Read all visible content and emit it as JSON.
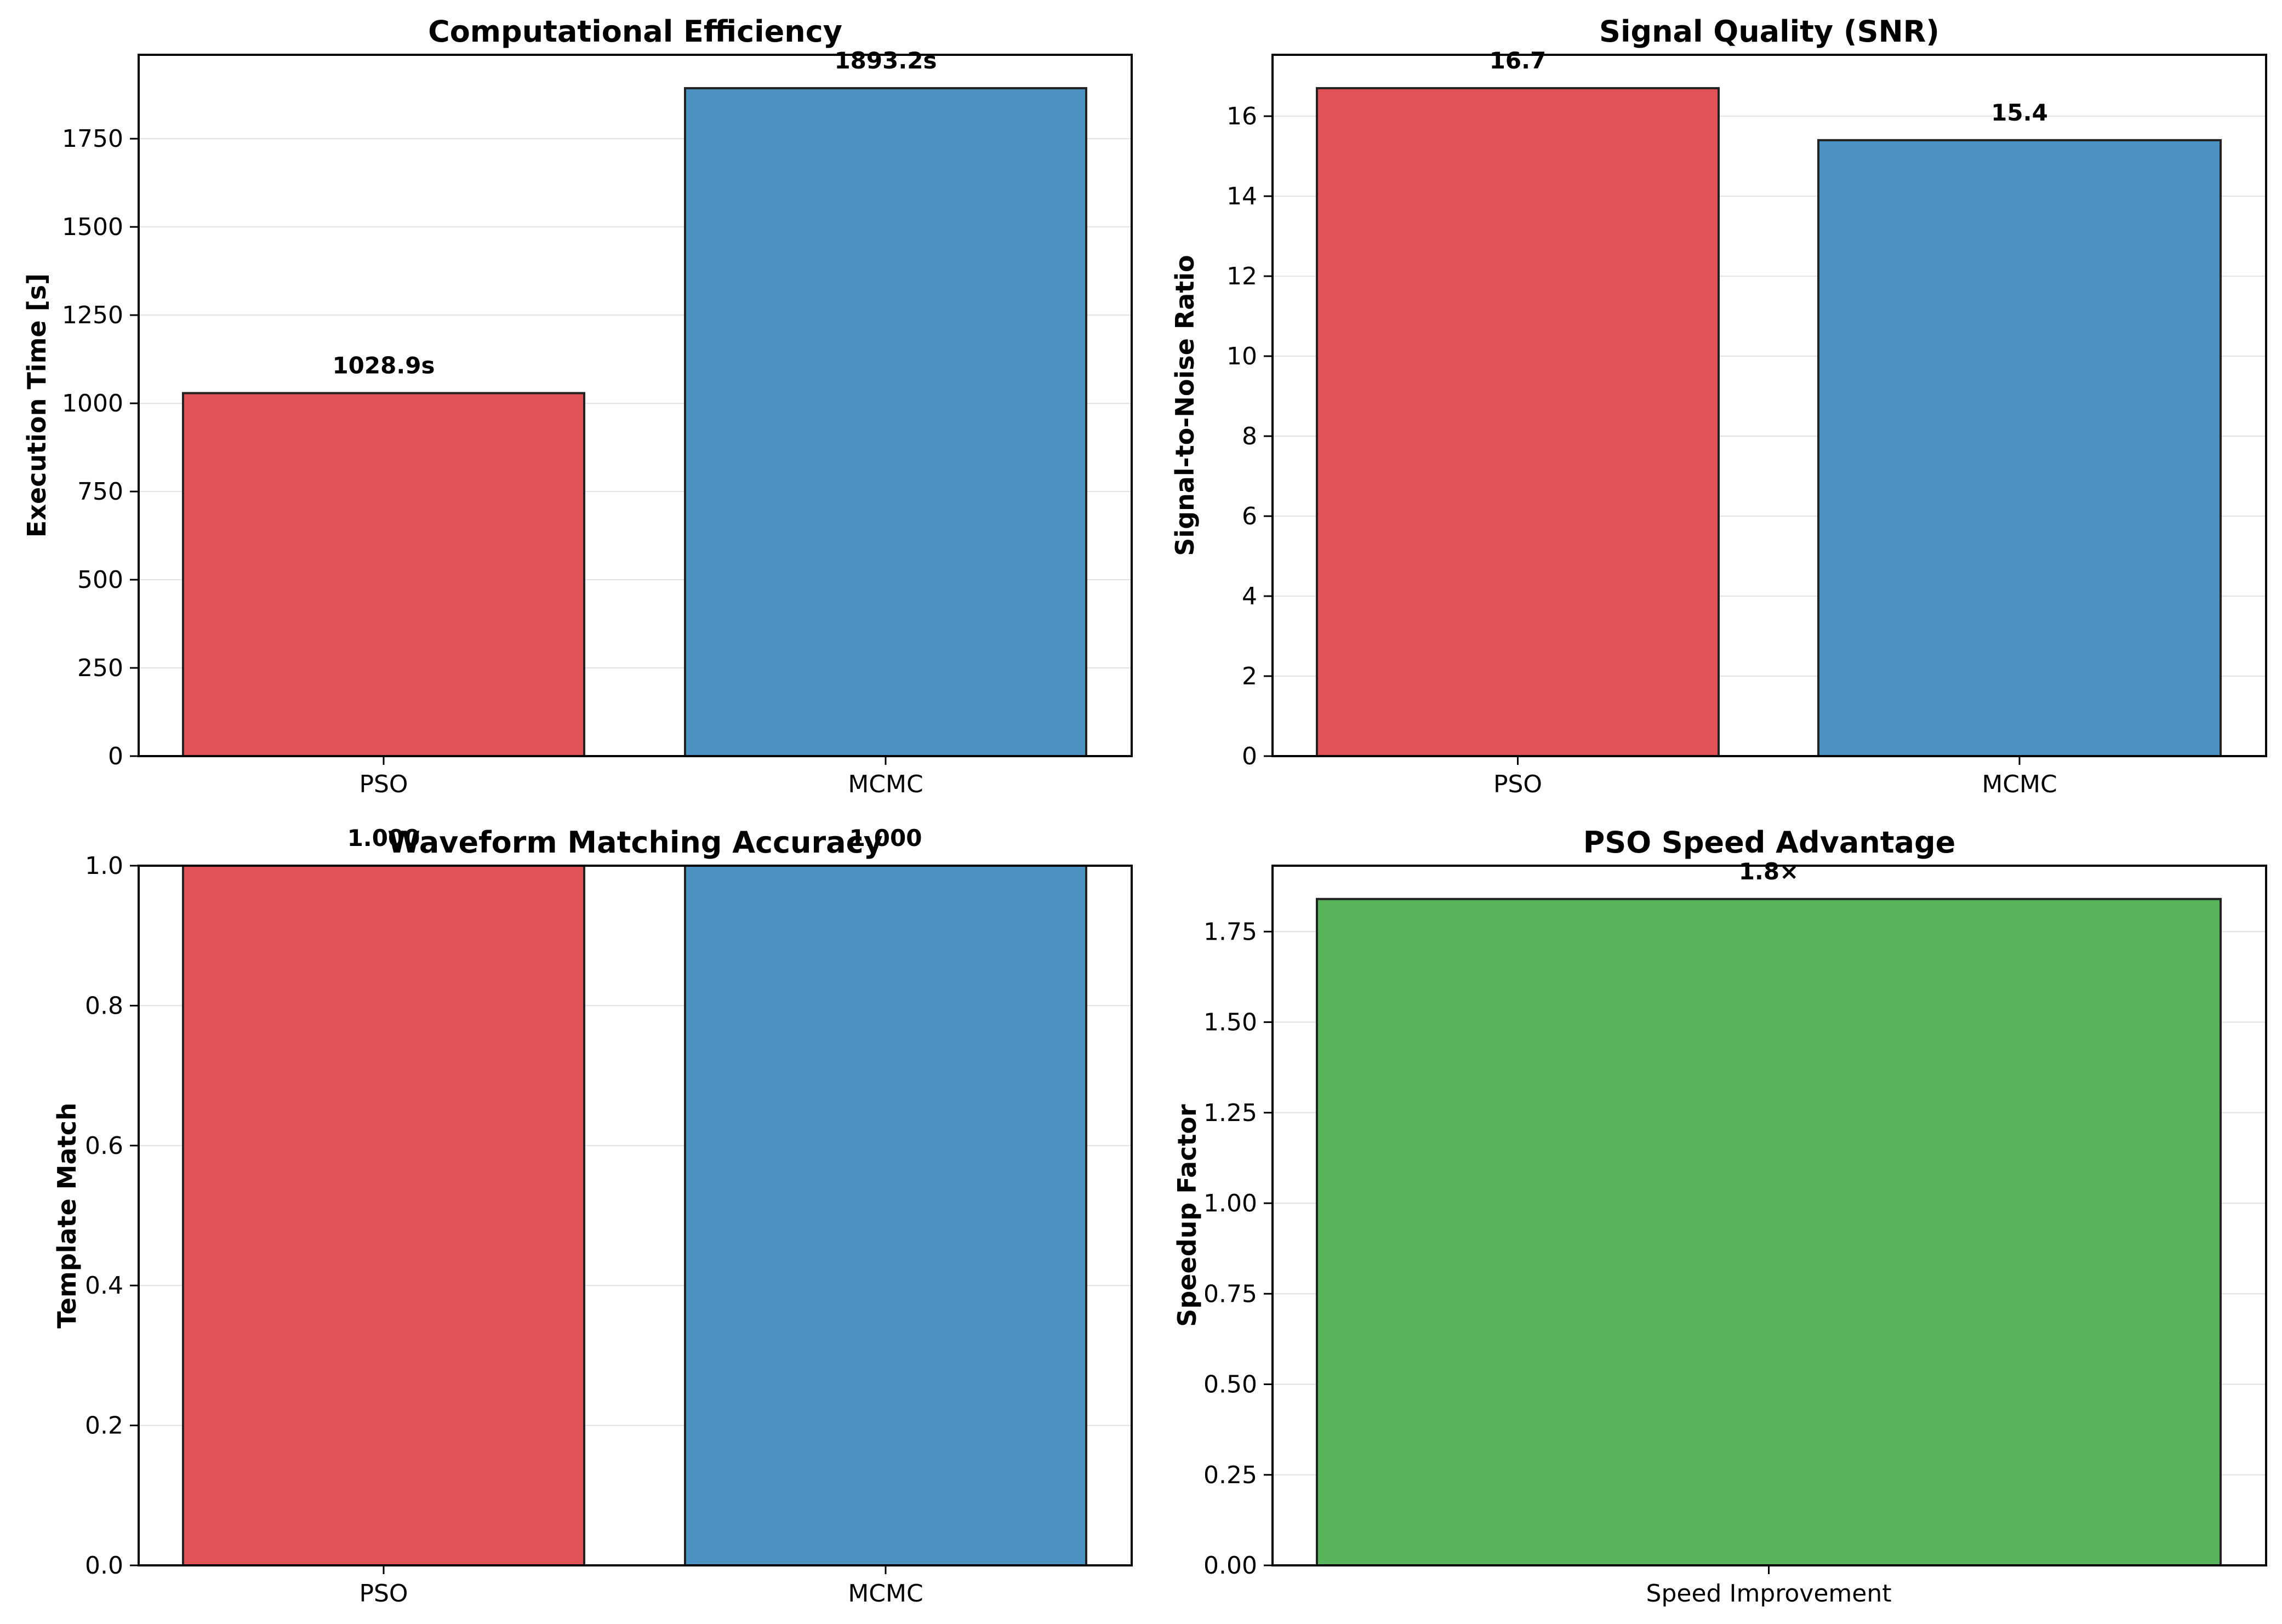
{
  "chart_data": [
    {
      "type": "bar",
      "title": "Computational Efficiency",
      "ylabel": "Execution Time [s]",
      "categories": [
        "PSO",
        "MCMC"
      ],
      "values": [
        1028.9,
        1893.2
      ],
      "value_labels": [
        "1028.9s",
        "1893.2s"
      ],
      "colors": [
        "#e05256",
        "#4c92c3"
      ],
      "ylim": [
        0,
        1987.86
      ],
      "yticks": [
        0,
        250,
        500,
        750,
        1000,
        1250,
        1500,
        1750
      ],
      "ytick_labels": [
        "0",
        "250",
        "500",
        "750",
        "1000",
        "1250",
        "1500",
        "1750"
      ],
      "grid": "y"
    },
    {
      "type": "bar",
      "title": "Signal Quality (SNR)",
      "ylabel": "Signal-to-Noise Ratio",
      "categories": [
        "PSO",
        "MCMC"
      ],
      "values": [
        16.7,
        15.4
      ],
      "value_labels": [
        "16.7",
        "15.4"
      ],
      "colors": [
        "#e05256",
        "#4c92c3"
      ],
      "ylim": [
        0,
        17.535
      ],
      "yticks": [
        0,
        2,
        4,
        6,
        8,
        10,
        12,
        14,
        16
      ],
      "ytick_labels": [
        "0",
        "2",
        "4",
        "6",
        "8",
        "10",
        "12",
        "14",
        "16"
      ],
      "grid": "y"
    },
    {
      "type": "bar",
      "title": "Waveform Matching Accuracy",
      "ylabel": "Template Match",
      "categories": [
        "PSO",
        "MCMC"
      ],
      "values": [
        1.0,
        1.0
      ],
      "value_labels": [
        "1.000",
        "1.000"
      ],
      "colors": [
        "#e05256",
        "#4c92c3"
      ],
      "ylim": [
        0,
        1.0
      ],
      "yticks": [
        0,
        0.2,
        0.4,
        0.6,
        0.8,
        1.0
      ],
      "ytick_labels": [
        "0.0",
        "0.2",
        "0.4",
        "0.6",
        "0.8",
        "1.0"
      ],
      "grid": "y"
    },
    {
      "type": "bar",
      "title": "PSO Speed Advantage",
      "ylabel": "Speedup Factor",
      "categories": [
        "Speed Improvement"
      ],
      "values": [
        1.84
      ],
      "value_labels": [
        "1.8×"
      ],
      "colors": [
        "#58b45a"
      ],
      "ylim": [
        0,
        1.932
      ],
      "yticks": [
        0,
        0.25,
        0.5,
        0.75,
        1.0,
        1.25,
        1.5,
        1.75
      ],
      "ytick_labels": [
        "0.00",
        "0.25",
        "0.50",
        "0.75",
        "1.00",
        "1.25",
        "1.50",
        "1.75"
      ],
      "grid": "y"
    }
  ]
}
